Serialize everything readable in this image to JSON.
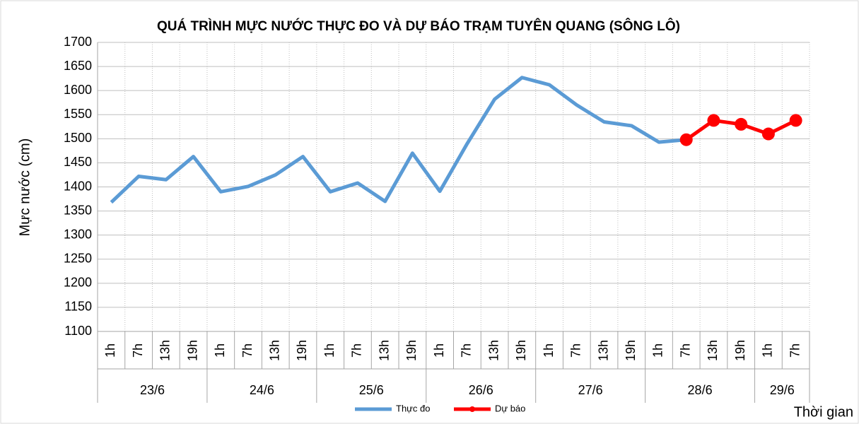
{
  "chart_data": {
    "type": "line",
    "title": "QUÁ TRÌNH MỰC NƯỚC THỰC ĐO VÀ DỰ BÁO TRẠM TUYÊN QUANG (SÔNG LÔ)",
    "ylabel": "Mực nước (cm)",
    "xlabel": "Thời gian",
    "groups": [
      {
        "label": "23/6",
        "categories": [
          "1h",
          "7h",
          "13h",
          "19h"
        ]
      },
      {
        "label": "24/6",
        "categories": [
          "1h",
          "7h",
          "13h",
          "19h"
        ]
      },
      {
        "label": "25/6",
        "categories": [
          "1h",
          "7h",
          "13h",
          "19h"
        ]
      },
      {
        "label": "26/6",
        "categories": [
          "1h",
          "7h",
          "13h",
          "19h"
        ]
      },
      {
        "label": "27/6",
        "categories": [
          "1h",
          "7h",
          "13h",
          "19h"
        ]
      },
      {
        "label": "28/6",
        "categories": [
          "1h",
          "7h",
          "13h",
          "19h"
        ]
      },
      {
        "label": "29/6",
        "categories": [
          "1h",
          "7h"
        ]
      }
    ],
    "series": [
      {
        "name": "Thực đo",
        "color": "#5b9bd5",
        "marker": false,
        "values": [
          1368,
          1422,
          1415,
          1463,
          1390,
          1401,
          1425,
          1463,
          1390,
          1408,
          1370,
          1470,
          1391,
          1490,
          1582,
          1627,
          1612,
          1570,
          1535,
          1527,
          1493,
          1498,
          null,
          null,
          null,
          null
        ]
      },
      {
        "name": "Dự báo",
        "color": "#ff0000",
        "marker": true,
        "values": [
          null,
          null,
          null,
          null,
          null,
          null,
          null,
          null,
          null,
          null,
          null,
          null,
          null,
          null,
          null,
          null,
          null,
          null,
          null,
          null,
          null,
          1498,
          1538,
          1530,
          1510,
          1538
        ]
      }
    ],
    "ylim": [
      1100,
      1700
    ],
    "yticks": [
      1100,
      1150,
      1200,
      1250,
      1300,
      1350,
      1400,
      1450,
      1500,
      1550,
      1600,
      1650,
      1700
    ],
    "grid": true,
    "legend": "bottom"
  }
}
